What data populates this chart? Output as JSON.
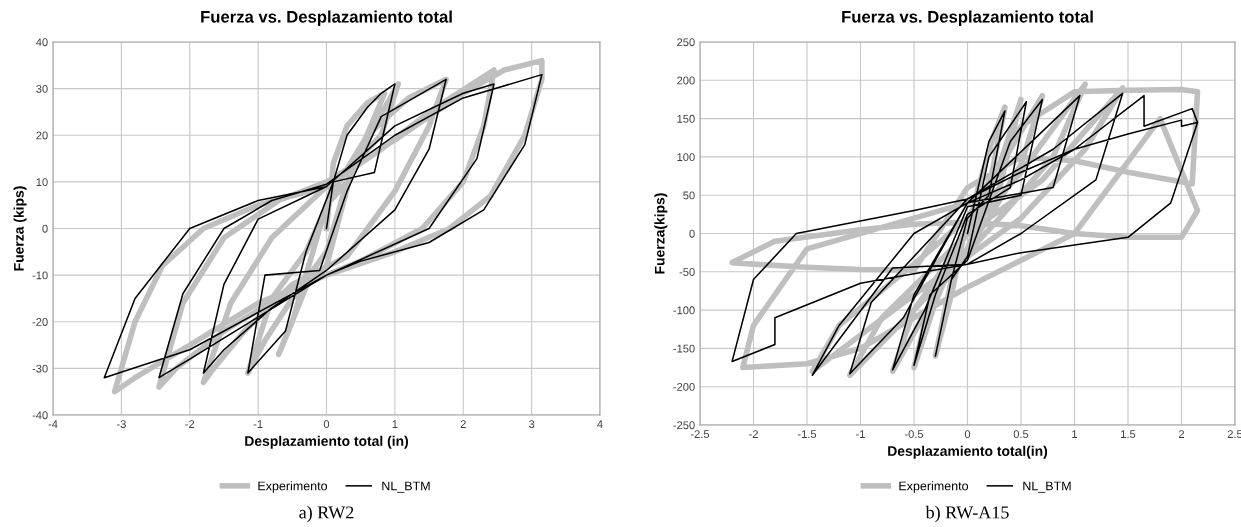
{
  "chart_data": [
    {
      "type": "line",
      "title": "Fuerza vs. Desplazamiento total",
      "xlabel": "Desplazamiento total (in)",
      "ylabel": "Fuerza (kips)",
      "xlim": [
        -4,
        4
      ],
      "xticks": [
        -4,
        -3,
        -2,
        -1,
        0,
        1,
        2,
        3,
        4
      ],
      "ylim": [
        -40,
        40
      ],
      "yticks": [
        -40,
        -30,
        -20,
        -10,
        0,
        10,
        20,
        30,
        40
      ],
      "grid": true,
      "legend": "bottom",
      "marker": "none",
      "line_style": "solid",
      "annotations": [
        "a) RW2"
      ],
      "series": [
        {
          "name": "Experimento",
          "color": "#bfbfbf",
          "x": [
            0,
            0.1,
            0.3,
            0.6,
            0.85,
            0.3,
            0,
            -0.3,
            -0.5,
            -0.7,
            -0.2,
            0,
            0.3,
            0.7,
            1.05,
            0.8,
            0.4,
            0,
            -0.5,
            -0.9,
            -1.15,
            -0.8,
            -0.3,
            0.1,
            0.6,
            1.2,
            1.75,
            1.5,
            1.0,
            0.3,
            -0.5,
            -1.2,
            -1.65,
            -1.8,
            -1.4,
            -0.8,
            0,
            0.8,
            1.6,
            2.45,
            2.3,
            2.0,
            1.4,
            0.5,
            -0.5,
            -1.5,
            -2.2,
            -2.45,
            -2.1,
            -1.5,
            -0.7,
            0,
            1.0,
            2.0,
            2.6,
            3.15,
            3.15,
            2.9,
            2.4,
            1.8,
            1.0,
            0,
            -1.0,
            -2.0,
            -2.8,
            -3.1,
            -2.8,
            -2.4,
            -1.8,
            -1.0,
            0
          ],
          "values": [
            0,
            14,
            22,
            27,
            29,
            10,
            5,
            -10,
            -20,
            -27,
            -9,
            -5,
            10,
            22,
            31,
            20,
            14,
            -8,
            -15,
            -24,
            -31,
            -15,
            -5,
            8,
            20,
            28,
            32,
            22,
            8,
            -6,
            -12,
            -22,
            -30,
            -33,
            -16,
            -2,
            9,
            17,
            26,
            34,
            22,
            10,
            0,
            -7,
            -13,
            -22,
            -30,
            -34,
            -16,
            -2,
            6,
            10,
            19,
            29,
            34,
            36,
            32,
            20,
            7,
            0,
            -5,
            -10,
            -16,
            -25,
            -32,
            -35,
            -20,
            -8,
            0,
            5,
            9
          ]
        },
        {
          "name": "NL_BTM",
          "color": "#000000",
          "x": [
            0,
            0.1,
            0.3,
            0.6,
            0.8,
            1.0,
            0.7,
            0.1,
            -0.3,
            -0.6,
            -1.15,
            -0.9,
            -0.1,
            0.3,
            0.8,
            1.75,
            1.5,
            1.0,
            0,
            -0.8,
            -1.5,
            -1.8,
            -1.5,
            -1.0,
            0,
            1.0,
            2.0,
            2.45,
            2.2,
            1.5,
            0,
            -1.0,
            -2.0,
            -2.45,
            -2.1,
            -1.5,
            -0.8,
            0,
            1.0,
            2.0,
            3.15,
            2.9,
            2.3,
            1.5,
            0.5,
            0,
            -1.0,
            -2.0,
            -3.25,
            -2.8,
            -2.0,
            -1.0,
            0
          ],
          "values": [
            0,
            10,
            20,
            26,
            29,
            31,
            12,
            10,
            -5,
            -22,
            -31,
            -10,
            -9,
            8,
            24,
            32,
            17,
            4,
            -9,
            -17,
            -26,
            -31,
            -12,
            2,
            9,
            22,
            29,
            31,
            15,
            0,
            -10,
            -19,
            -28,
            -32,
            -14,
            0,
            6,
            9.5,
            20,
            28,
            33,
            18,
            4,
            -3,
            -7,
            -10,
            -18,
            -26,
            -32,
            -15,
            0,
            6,
            9
          ]
        }
      ]
    },
    {
      "type": "line",
      "title": "Fuerza vs. Desplazamiento total",
      "xlabel": "Desplazamiento total(in)",
      "ylabel": "Fuerza(kips)",
      "xlim": [
        -2.5,
        2.5
      ],
      "xticks": [
        -2.5,
        -2,
        -1.5,
        -1,
        -0.5,
        0,
        0.5,
        1,
        1.5,
        2,
        2.5
      ],
      "ylim": [
        -250,
        250
      ],
      "yticks": [
        -250,
        -200,
        -150,
        -100,
        -50,
        0,
        50,
        100,
        150,
        200,
        250
      ],
      "grid": true,
      "legend": "bottom",
      "marker": "none",
      "line_style": "solid",
      "annotations": [
        "b) RW-A15"
      ],
      "series": [
        {
          "name": "Experimento",
          "color": "#bfbfbf",
          "x": [
            0,
            0.1,
            0.25,
            0.35,
            0.2,
            0,
            -0.15,
            -0.3,
            -0.15,
            0,
            0.3,
            0.5,
            0.3,
            0,
            -0.3,
            -0.5,
            -0.3,
            0,
            0.4,
            0.7,
            0.5,
            0.2,
            -0.3,
            -0.7,
            -0.5,
            0,
            0.5,
            1.1,
            0.8,
            0.3,
            -0.5,
            -1.1,
            -0.8,
            0,
            0.7,
            1.45,
            1.1,
            0.5,
            -0.5,
            -1.45,
            -1.2,
            -0.5,
            0,
            0.5,
            1.0,
            1.5,
            2.0,
            2.15,
            2.1,
            1.5,
            1.0,
            0.5,
            0,
            -0.5,
            -1.0,
            -1.5,
            -2.0,
            -2.2,
            -1.8,
            -1.0,
            -0.5,
            0,
            0.5,
            1.0,
            1.5,
            2.0,
            2.15,
            1.8,
            1.0,
            0,
            -0.5,
            -1.0,
            -1.5,
            -2.1,
            -2.0,
            -1.5,
            -0.5,
            0
          ],
          "values": [
            0,
            60,
            130,
            165,
            60,
            20,
            -80,
            -160,
            -60,
            -20,
            90,
            175,
            60,
            10,
            -90,
            -175,
            -60,
            0,
            110,
            180,
            90,
            20,
            -80,
            -180,
            -100,
            0,
            80,
            195,
            100,
            20,
            -100,
            -185,
            -110,
            0,
            70,
            190,
            110,
            20,
            -80,
            -180,
            -120,
            -40,
            20,
            140,
            185,
            187,
            188,
            185,
            65,
            80,
            95,
            100,
            60,
            -48,
            -47,
            -44,
            -40,
            -38,
            -10,
            5,
            12,
            15,
            10,
            0,
            -5,
            -5,
            30,
            150,
            0,
            -70,
            -110,
            -150,
            -170,
            -175,
            -120,
            -20,
            20,
            40
          ]
        },
        {
          "name": "NL_BTM",
          "color": "#000000",
          "x": [
            0,
            0.1,
            0.2,
            0.35,
            0.2,
            0,
            -0.15,
            -0.3,
            -0.15,
            0,
            0.2,
            0.55,
            0.4,
            0,
            -0.3,
            -0.5,
            -0.35,
            0,
            0.4,
            0.7,
            0.5,
            0,
            -0.4,
            -0.7,
            -0.5,
            0,
            0.6,
            1.05,
            0.8,
            0,
            -0.6,
            -1.1,
            -0.9,
            0,
            0.8,
            1.45,
            1.2,
            0.5,
            0,
            -0.7,
            -1.45,
            -1.2,
            -0.5,
            0,
            0.5,
            1.0,
            1.65,
            1.65,
            2.1,
            2.15,
            1.9,
            1.5,
            0.5,
            0,
            -1.0,
            -1.8,
            -1.8,
            -2.2,
            -2.0,
            -1.6,
            -0.5,
            0,
            0.5,
            1.0,
            1.5,
            2.0,
            2.0,
            2.15
          ],
          "values": [
            0,
            60,
            120,
            160,
            50,
            20,
            -60,
            -160,
            -60,
            -30,
            100,
            172,
            60,
            25,
            -80,
            -172,
            -80,
            -35,
            120,
            175,
            50,
            35,
            -100,
            -178,
            -80,
            40,
            120,
            180,
            60,
            40,
            -110,
            -183,
            -90,
            45,
            110,
            183,
            70,
            0,
            -40,
            -45,
            -185,
            -120,
            0,
            40,
            70,
            110,
            180,
            140,
            163,
            145,
            40,
            -5,
            -25,
            -40,
            -65,
            -110,
            -145,
            -167,
            -60,
            0,
            30,
            45,
            80,
            110,
            130,
            148,
            140,
            145
          ]
        }
      ]
    }
  ]
}
